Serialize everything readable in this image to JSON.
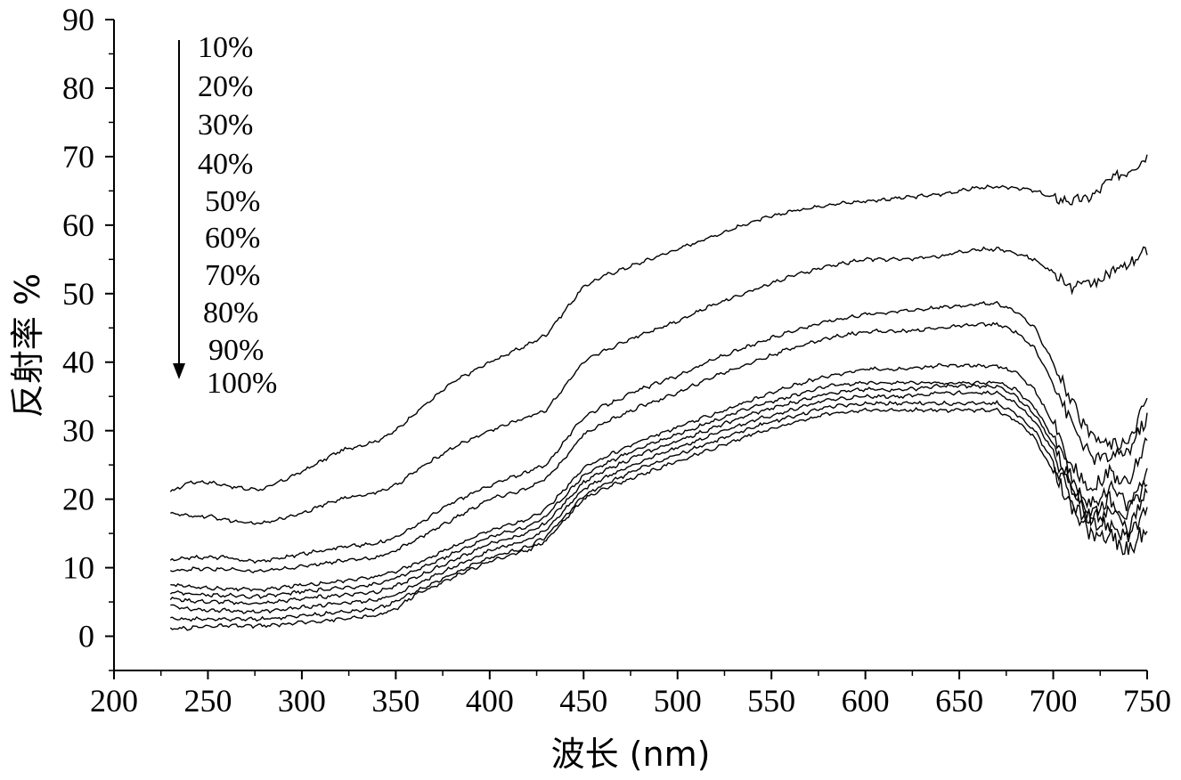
{
  "chart_data": {
    "type": "line",
    "title": "",
    "xlabel": "波长 (nm)",
    "ylabel": "反射率 %",
    "xlim": [
      200,
      750
    ],
    "ylim": [
      -5,
      90
    ],
    "xticks": [
      200,
      250,
      300,
      350,
      400,
      450,
      500,
      550,
      600,
      650,
      700,
      750
    ],
    "yticks": [
      0,
      10,
      20,
      30,
      40,
      50,
      60,
      70,
      80,
      90
    ],
    "grid": false,
    "legend_position": "top-left",
    "legend_arrow": "down",
    "x": [
      230,
      240,
      250,
      260,
      270,
      280,
      300,
      320,
      340,
      350,
      360,
      380,
      400,
      420,
      430,
      440,
      450,
      460,
      480,
      500,
      520,
      540,
      560,
      580,
      600,
      620,
      640,
      660,
      670,
      680,
      690,
      700,
      710,
      720,
      730,
      740,
      750
    ],
    "series": [
      {
        "name": "10%",
        "values": [
          21,
          22.5,
          22.5,
          22,
          21.5,
          21.5,
          24,
          27,
          28.5,
          30,
          32.5,
          37,
          40,
          42.5,
          44,
          47.5,
          51,
          52.5,
          54.5,
          56.5,
          58.5,
          60.5,
          62,
          63,
          63.5,
          64,
          64.5,
          65.5,
          65.5,
          65.5,
          65,
          64,
          63.5,
          64,
          66.5,
          68,
          70
        ]
      },
      {
        "name": "20%",
        "values": [
          18,
          17.5,
          17.5,
          17,
          16.5,
          16.5,
          18,
          20,
          21,
          22,
          24,
          27.5,
          30,
          32,
          33,
          36.5,
          40,
          41.5,
          44,
          46,
          48.5,
          50.5,
          52.5,
          54,
          55,
          55,
          55.5,
          56.5,
          56.5,
          56,
          55,
          53,
          51,
          51.5,
          53,
          54,
          56.5
        ]
      },
      {
        "name": "30%",
        "values": [
          11,
          11.5,
          11.5,
          11.5,
          11,
          11,
          12,
          13,
          13.5,
          14.5,
          16,
          19.5,
          22,
          24,
          25,
          28.5,
          32,
          33.5,
          36,
          38,
          40.5,
          42.5,
          44.5,
          46,
          47,
          47.5,
          48,
          48.5,
          48.5,
          47.5,
          45,
          40,
          34,
          29,
          28,
          28,
          35
        ]
      },
      {
        "name": "40%",
        "values": [
          9.5,
          9.8,
          9.8,
          9.8,
          9.5,
          9.5,
          10.2,
          11,
          11.5,
          12.5,
          14,
          17,
          20,
          21.5,
          23,
          26,
          29.5,
          31,
          33.5,
          35.5,
          38,
          40,
          42,
          43.5,
          44.5,
          44.5,
          45,
          45.5,
          45.5,
          44.5,
          42,
          37,
          31,
          26,
          26,
          27,
          32
        ]
      },
      {
        "name": "50%",
        "values": [
          7.5,
          7.3,
          7,
          7,
          6.8,
          6.8,
          7.5,
          8,
          8.7,
          9.5,
          10.5,
          13,
          15.5,
          17,
          18.5,
          21.5,
          24.5,
          26,
          28.5,
          30.5,
          32.5,
          34.5,
          36.5,
          38,
          39,
          39,
          39.5,
          39.5,
          39.5,
          38.5,
          36,
          31,
          25,
          21.5,
          24,
          22,
          29
        ]
      },
      {
        "name": "60%",
        "values": [
          6.5,
          6.2,
          6,
          6,
          5.8,
          5.8,
          6.5,
          7,
          7.6,
          8.5,
          9.5,
          12,
          14.5,
          16,
          17.5,
          20.5,
          23.5,
          25,
          27.5,
          29.5,
          31.5,
          33.5,
          35,
          36.5,
          37,
          37,
          37,
          37,
          37,
          36,
          33.5,
          29,
          23,
          19,
          22,
          19,
          24
        ]
      },
      {
        "name": "70%",
        "values": [
          5.5,
          5.2,
          5,
          5,
          4.8,
          4.8,
          5.5,
          6,
          6.5,
          7.3,
          8.5,
          11,
          13.5,
          15,
          16.5,
          19.5,
          22.5,
          24,
          26.5,
          28.5,
          30.5,
          32.5,
          34,
          35.5,
          36,
          36,
          36.5,
          36.5,
          36.5,
          35,
          32.5,
          28,
          22,
          18,
          20,
          17.5,
          23
        ]
      },
      {
        "name": "80%",
        "values": [
          4.5,
          4,
          3.8,
          3.8,
          3.6,
          3.6,
          4.2,
          4.8,
          5.3,
          6,
          7.5,
          10,
          12.5,
          14,
          15.5,
          18.5,
          21.5,
          23,
          25.5,
          27.5,
          29.5,
          31.5,
          33,
          34.5,
          35,
          35,
          35.5,
          35.5,
          35.5,
          34,
          31.5,
          27,
          21,
          17,
          18.5,
          15.5,
          21
        ]
      },
      {
        "name": "90%",
        "values": [
          2.5,
          2.5,
          2.5,
          2.5,
          2.5,
          2.5,
          3,
          3.5,
          4,
          5,
          6.5,
          9,
          11.5,
          13,
          14.5,
          17.5,
          20.5,
          22,
          24.5,
          26.5,
          28.5,
          30.5,
          32,
          33.5,
          34,
          34,
          34,
          34,
          34,
          32.5,
          30,
          25.5,
          19.5,
          16,
          16.5,
          14.5,
          18
        ]
      },
      {
        "name": "100%",
        "values": [
          1,
          1.2,
          1.5,
          1.5,
          1.5,
          1.5,
          2,
          2.5,
          3,
          4,
          6,
          8.5,
          11,
          12.5,
          14,
          17,
          20,
          21.5,
          23.5,
          25.5,
          27.5,
          29.5,
          31,
          32.5,
          33,
          33,
          33,
          33,
          33,
          31.5,
          29,
          24,
          18,
          15,
          14.5,
          12.5,
          16
        ]
      }
    ]
  }
}
